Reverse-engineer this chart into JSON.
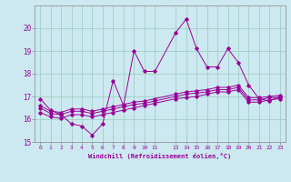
{
  "xlabel": "Windchill (Refroidissement éolien,°C)",
  "background_color": "#cce8f0",
  "grid_color": "#99ccbb",
  "line_color": "#990099",
  "xlim": [
    -0.5,
    23.5
  ],
  "ylim": [
    15,
    21
  ],
  "yticks": [
    15,
    16,
    17,
    18,
    19,
    20
  ],
  "xticks": [
    0,
    1,
    2,
    3,
    4,
    5,
    6,
    7,
    8,
    9,
    10,
    11,
    13,
    14,
    15,
    16,
    17,
    18,
    19,
    20,
    21,
    22,
    23
  ],
  "line1_x": [
    0,
    1,
    2,
    3,
    4,
    5,
    6,
    7,
    8,
    9,
    10,
    11,
    13,
    14,
    15,
    16,
    17,
    18,
    19,
    20,
    21,
    22,
    23
  ],
  "line1_y": [
    16.9,
    16.4,
    16.2,
    15.8,
    15.7,
    15.3,
    15.8,
    17.7,
    16.6,
    19.0,
    18.1,
    18.1,
    19.8,
    20.4,
    19.1,
    18.3,
    18.3,
    19.1,
    18.5,
    17.5,
    16.9,
    16.8,
    17.0
  ],
  "line2_x": [
    0,
    1,
    2,
    3,
    4,
    5,
    6,
    7,
    8,
    9,
    10,
    11,
    13,
    14,
    15,
    16,
    17,
    18,
    19,
    20,
    21,
    22,
    23
  ],
  "line2_y": [
    16.6,
    16.35,
    16.3,
    16.45,
    16.45,
    16.35,
    16.45,
    16.55,
    16.65,
    16.75,
    16.8,
    16.9,
    17.1,
    17.2,
    17.25,
    17.3,
    17.4,
    17.4,
    17.5,
    16.95,
    16.95,
    17.0,
    17.05
  ],
  "line3_x": [
    0,
    1,
    2,
    3,
    4,
    5,
    6,
    7,
    8,
    9,
    10,
    11,
    13,
    14,
    15,
    16,
    17,
    18,
    19,
    20,
    21,
    22,
    23
  ],
  "line3_y": [
    16.5,
    16.25,
    16.2,
    16.35,
    16.35,
    16.25,
    16.35,
    16.45,
    16.55,
    16.65,
    16.7,
    16.8,
    17.0,
    17.1,
    17.15,
    17.2,
    17.3,
    17.3,
    17.4,
    16.85,
    16.85,
    16.95,
    16.95
  ],
  "line4_x": [
    0,
    1,
    2,
    3,
    4,
    5,
    6,
    7,
    8,
    9,
    10,
    11,
    13,
    14,
    15,
    16,
    17,
    18,
    19,
    20,
    21,
    22,
    23
  ],
  "line4_y": [
    16.3,
    16.1,
    16.05,
    16.2,
    16.2,
    16.1,
    16.2,
    16.3,
    16.4,
    16.5,
    16.6,
    16.7,
    16.9,
    16.95,
    17.0,
    17.1,
    17.2,
    17.2,
    17.3,
    16.75,
    16.75,
    16.85,
    16.9
  ]
}
